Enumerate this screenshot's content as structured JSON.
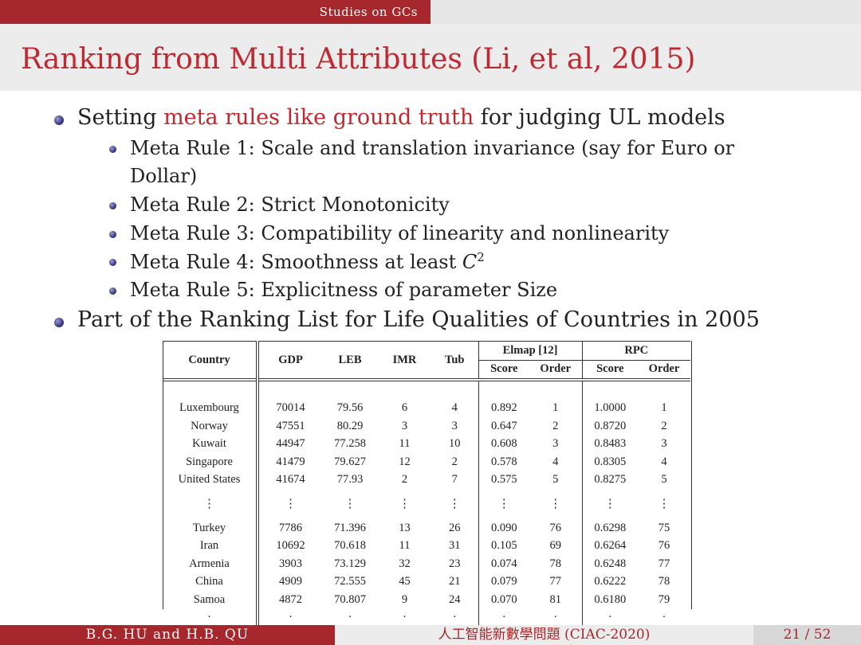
{
  "header": {
    "section": "Studies on GCs",
    "title": "Ranking from Multi Attributes (Li, et al, 2015)"
  },
  "bullets": [
    {
      "pre": "Setting ",
      "highlight": "meta rules like ground truth",
      "post": " for judging UL models"
    },
    {
      "text": "Part of the Ranking List for Life Qualities of Countries in 2005"
    }
  ],
  "subbullets": [
    {
      "line1": "Meta Rule 1: Scale and translation invariance (say for Euro or",
      "line2": "Dollar)"
    },
    {
      "text": "Meta Rule 2: Strict Monotonicity"
    },
    {
      "text": "Meta Rule 3: Compatibility of linearity and nonlinearity"
    },
    {
      "text": "Meta Rule 4: Smoothness at least ",
      "math": "C",
      "sup": "2"
    },
    {
      "text": "Meta Rule 5: Explicitness of parameter Size"
    }
  ],
  "table": {
    "headers": {
      "country": "Country",
      "gdp": "GDP",
      "leb": "LEB",
      "imr": "IMR",
      "tub": "Tub",
      "elmap": "Elmap [12]",
      "rpc": "RPC",
      "score": "Score",
      "order": "Order"
    },
    "top_rows": [
      [
        "Luxembourg",
        "70014",
        "79.56",
        "6",
        "4",
        "0.892",
        "1",
        "1.0000",
        "1"
      ],
      [
        "Norway",
        "47551",
        "80.29",
        "3",
        "3",
        "0.647",
        "2",
        "0.8720",
        "2"
      ],
      [
        "Kuwait",
        "44947",
        "77.258",
        "11",
        "10",
        "0.608",
        "3",
        "0.8483",
        "3"
      ],
      [
        "Singapore",
        "41479",
        "79.627",
        "12",
        "2",
        "0.578",
        "4",
        "0.8305",
        "4"
      ],
      [
        "United States",
        "41674",
        "77.93",
        "2",
        "7",
        "0.575",
        "5",
        "0.8275",
        "5"
      ]
    ],
    "ellipsis": "⋮",
    "bottom_rows": [
      [
        "Turkey",
        "7786",
        "71.396",
        "13",
        "26",
        "0.090",
        "76",
        "0.6298",
        "75"
      ],
      [
        "Iran",
        "10692",
        "70.618",
        "11",
        "31",
        "0.105",
        "69",
        "0.6264",
        "76"
      ],
      [
        "Armenia",
        "3903",
        "73.129",
        "32",
        "23",
        "0.074",
        "78",
        "0.6248",
        "77"
      ],
      [
        "China",
        "4909",
        "72.555",
        "45",
        "21",
        "0.079",
        "77",
        "0.6222",
        "78"
      ],
      [
        "Samoa",
        "4872",
        "70.807",
        "9",
        "24",
        "0.070",
        "81",
        "0.6180",
        "79"
      ]
    ],
    "trail": "·"
  },
  "footer": {
    "authors": "B.G. HU and H.B. QU",
    "event": "人工智能新數學問題 (CIAC-2020)",
    "page": "21 / 52"
  }
}
